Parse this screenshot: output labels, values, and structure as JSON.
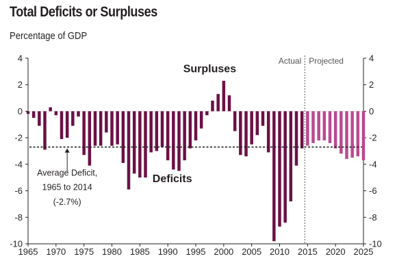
{
  "chart_data": {
    "type": "bar",
    "title": "Total Deficits or Surpluses",
    "ylabel": "Percentage of GDP",
    "ylim": [
      -10,
      4
    ],
    "xlim": [
      1965,
      2025
    ],
    "x_ticks": [
      "1965",
      "1970",
      "1975",
      "1980",
      "1985",
      "1990",
      "1995",
      "2000",
      "2005",
      "2010",
      "2015",
      "2020",
      "2025"
    ],
    "y_ticks": [
      "-10",
      "-8",
      "-6",
      "-4",
      "-2",
      "0",
      "2",
      "4"
    ],
    "actual_label": "Actual",
    "projected_label": "Projected",
    "surpluses_label": "Surpluses",
    "deficits_label": "Deficits",
    "average": {
      "value": -2.7,
      "label_lines": [
        "Average Deficit,",
        "1965 to 2014",
        "(-2.7%)"
      ]
    },
    "colors": {
      "actual": "#6b1146",
      "projected": "#b84a90",
      "axis": "#231f20"
    },
    "series": [
      {
        "name": "Actual",
        "years": [
          1965,
          1966,
          1967,
          1968,
          1969,
          1970,
          1971,
          1972,
          1973,
          1974,
          1975,
          1976,
          1977,
          1978,
          1979,
          1980,
          1981,
          1982,
          1983,
          1984,
          1985,
          1986,
          1987,
          1988,
          1989,
          1990,
          1991,
          1992,
          1993,
          1994,
          1995,
          1996,
          1997,
          1998,
          1999,
          2000,
          2001,
          2002,
          2003,
          2004,
          2005,
          2006,
          2007,
          2008,
          2009,
          2010,
          2011,
          2012,
          2013,
          2014
        ],
        "values": [
          -0.2,
          -0.5,
          -1.1,
          -2.9,
          0.3,
          -0.3,
          -2.1,
          -2.0,
          -1.1,
          -0.4,
          -3.3,
          -4.1,
          -2.6,
          -2.6,
          -1.6,
          -2.6,
          -2.5,
          -3.9,
          -5.9,
          -4.7,
          -5.0,
          -5.0,
          -3.1,
          -3.0,
          -2.7,
          -3.7,
          -4.4,
          -4.5,
          -3.7,
          -2.8,
          -2.2,
          -1.3,
          -0.3,
          0.8,
          1.3,
          2.3,
          1.2,
          -1.5,
          -3.3,
          -3.4,
          -2.5,
          -1.8,
          -1.1,
          -3.1,
          -9.8,
          -8.7,
          -8.4,
          -6.8,
          -4.1,
          -2.8
        ]
      },
      {
        "name": "Projected",
        "years": [
          2015,
          2016,
          2017,
          2018,
          2019,
          2020,
          2021,
          2022,
          2023,
          2024,
          2025
        ],
        "values": [
          -2.6,
          -2.4,
          -2.2,
          -2.2,
          -2.4,
          -2.8,
          -3.2,
          -3.6,
          -3.5,
          -3.4,
          -3.7
        ]
      }
    ]
  }
}
